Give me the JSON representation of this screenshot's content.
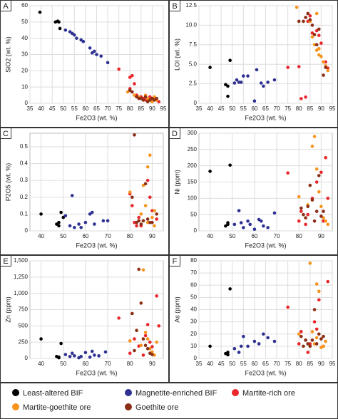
{
  "chart_data": [
    {
      "type": "scatter",
      "label": "A",
      "xlabel": "Fe2O3 (wt. %)",
      "ylabel": "SiO2 (wt. %)",
      "xlim": [
        35,
        95
      ],
      "ylim": [
        0,
        60
      ],
      "xticks": [
        35,
        40,
        45,
        50,
        55,
        60,
        65,
        70,
        75,
        80,
        85,
        90,
        95
      ],
      "yticks": [
        0,
        10,
        20,
        30,
        40,
        50,
        60
      ],
      "grid": true,
      "series": [
        {
          "x": [
            39.5,
            46.5,
            47.5,
            48,
            48.5
          ],
          "values": [
            56,
            50,
            50.5,
            50,
            46
          ]
        },
        {
          "x": [
            51,
            53,
            54,
            55,
            56,
            58,
            59,
            62,
            63,
            64,
            65,
            67,
            70
          ],
          "values": [
            45,
            44,
            43,
            42,
            40,
            39,
            38,
            34,
            31,
            32,
            30,
            29,
            25
          ]
        },
        {
          "x": [
            75,
            80,
            81,
            82,
            80,
            83,
            85,
            86,
            88,
            90,
            92,
            84,
            87,
            89,
            91,
            93
          ],
          "values": [
            21,
            16,
            17,
            12,
            9,
            5,
            4,
            3,
            3,
            2,
            2,
            3,
            2,
            4,
            3,
            1
          ]
        },
        {
          "x": [
            79,
            82,
            84,
            86,
            88,
            89,
            90,
            91,
            92,
            87
          ],
          "values": [
            7,
            5,
            4,
            2,
            3,
            2,
            1,
            4,
            2,
            5
          ]
        },
        {
          "x": [
            80,
            81,
            83,
            84,
            85,
            86,
            87,
            88,
            89,
            90,
            91,
            92
          ],
          "values": [
            8,
            7,
            4,
            3,
            3,
            2,
            4,
            1,
            2,
            3,
            2,
            3
          ]
        }
      ]
    },
    {
      "type": "scatter",
      "label": "B",
      "xlabel": "Fe2O3 (wt. %)",
      "ylabel": "LOI (wt. %)",
      "xlim": [
        35,
        95
      ],
      "ylim": [
        0,
        12.5
      ],
      "xticks": [
        35,
        40,
        45,
        50,
        55,
        60,
        65,
        70,
        75,
        80,
        85,
        90,
        95
      ],
      "yticks": [
        0,
        2.5,
        {
          "value": 5,
          "label": "5.0"
        },
        7.5,
        {
          "value": 10,
          "label": "10.0"
        },
        12.5
      ],
      "grid": true,
      "series": [
        {
          "x": [
            40,
            47,
            48,
            48,
            49
          ],
          "values": [
            4.6,
            2.4,
            2.2,
            0.9,
            5.5
          ]
        },
        {
          "x": [
            51,
            52,
            53,
            54,
            55,
            57,
            60,
            61,
            63,
            64,
            66,
            69
          ],
          "values": [
            2.6,
            3.0,
            2.7,
            2.7,
            3.5,
            3.5,
            0.3,
            4.3,
            2.6,
            2.2,
            2.7,
            3.0
          ]
        },
        {
          "x": [
            75,
            80,
            81,
            83,
            84,
            85,
            86,
            88,
            89,
            90,
            92,
            93
          ],
          "values": [
            4.6,
            4.7,
            0.6,
            0.8,
            10.5,
            11.2,
            9,
            9.3,
            8.7,
            7.7,
            5.3,
            4.5
          ]
        },
        {
          "x": [
            79,
            85,
            86,
            87,
            88,
            89,
            90,
            91,
            92,
            93,
            88,
            89
          ],
          "values": [
            12.3,
            10.5,
            8.5,
            7.5,
            6.8,
            6.2,
            6,
            5.3,
            4.8,
            4.2,
            11.5,
            7
          ]
        },
        {
          "x": [
            80,
            82,
            83,
            84,
            85,
            86,
            87,
            88,
            89,
            91,
            92
          ],
          "values": [
            10.5,
            10.5,
            11,
            11.5,
            10.7,
            10,
            8.8,
            7.5,
            9.5,
            3.6,
            4.6
          ]
        }
      ]
    },
    {
      "type": "scatter",
      "label": "C",
      "xlabel": "Fe2O3 (wt. %)",
      "ylabel": "P2O5 (wt. %)",
      "xlim": [
        35,
        95
      ],
      "ylim": [
        0,
        0.58
      ],
      "xticks": [
        40,
        50,
        60,
        70,
        80,
        90
      ],
      "yticks": [
        0,
        0.1,
        0.2,
        0.3,
        0.4,
        0.5
      ],
      "grid": true,
      "series": [
        {
          "x": [
            40,
            47,
            48,
            48,
            49,
            50
          ],
          "values": [
            0.1,
            0.04,
            0.05,
            0.03,
            0.11,
            0.08
          ]
        },
        {
          "x": [
            51,
            53,
            54,
            55,
            57,
            58,
            60,
            62,
            63,
            64,
            68,
            70
          ],
          "values": [
            0.09,
            0.03,
            0.21,
            0.02,
            0.04,
            0.02,
            0.05,
            0.1,
            0.11,
            0.04,
            0.06,
            0.06
          ]
        },
        {
          "x": [
            80,
            81,
            82,
            83,
            85,
            86,
            88,
            89,
            90,
            92,
            84
          ],
          "values": [
            0.22,
            0.15,
            0.05,
            0.03,
            0.03,
            0.06,
            0.3,
            0.2,
            0.12,
            0.07,
            0.08
          ]
        },
        {
          "x": [
            80,
            85,
            86,
            87,
            88,
            89,
            90,
            91,
            88,
            91
          ],
          "values": [
            0.23,
            0.1,
            0.27,
            0.15,
            0.38,
            0.45,
            0.08,
            0.12,
            0.05,
            0.03
          ]
        },
        {
          "x": [
            82,
            81,
            83,
            84,
            85,
            86,
            87,
            88,
            89,
            90,
            92
          ],
          "values": [
            0.57,
            0.2,
            0.05,
            0.06,
            0.04,
            0.06,
            0.28,
            0.07,
            0.05,
            0.05,
            0.1
          ]
        }
      ]
    },
    {
      "type": "scatter",
      "label": "D",
      "xlabel": "Fe2O3 (wt. %)",
      "ylabel": "Ni (ppm)",
      "xlim": [
        35,
        95
      ],
      "ylim": [
        0,
        300
      ],
      "xticks": [
        40,
        50,
        60,
        70,
        80,
        90
      ],
      "yticks": [
        0,
        50,
        100,
        150,
        200,
        250,
        300
      ],
      "grid": true,
      "series": [
        {
          "x": [
            40,
            47,
            48,
            48,
            49
          ],
          "values": [
            183,
            15,
            20,
            25,
            202
          ]
        },
        {
          "x": [
            51,
            53,
            54,
            55,
            57,
            58,
            60,
            62,
            63,
            64,
            66,
            69
          ],
          "values": [
            20,
            62,
            25,
            10,
            30,
            20,
            5,
            35,
            30,
            15,
            10,
            55
          ]
        },
        {
          "x": [
            75,
            80,
            81,
            83,
            84,
            86,
            88,
            90,
            92,
            93,
            91
          ],
          "values": [
            178,
            30,
            60,
            20,
            50,
            100,
            150,
            180,
            225,
            100,
            30
          ]
        },
        {
          "x": [
            80,
            84,
            86,
            87,
            88,
            89,
            90,
            91,
            92,
            93
          ],
          "values": [
            105,
            80,
            260,
            290,
            190,
            120,
            75,
            40,
            30,
            20
          ]
        },
        {
          "x": [
            81,
            82,
            83,
            84,
            85,
            86,
            87,
            88,
            89,
            90,
            91
          ],
          "values": [
            70,
            50,
            40,
            75,
            140,
            95,
            30,
            60,
            170,
            45,
            60
          ]
        }
      ]
    },
    {
      "type": "scatter",
      "label": "E",
      "xlabel": "Fe2O3 (wt. %)",
      "ylabel": "Zn (ppm)",
      "xlim": [
        35,
        95
      ],
      "ylim": [
        0,
        1500
      ],
      "xticks": [
        40,
        50,
        60,
        70,
        80,
        90
      ],
      "yticks": [
        0,
        250,
        500,
        750,
        {
          "value": 1000,
          "label": "1,000"
        },
        {
          "value": 1250,
          "label": "1,250"
        },
        {
          "value": 1500,
          "label": "1,500"
        }
      ],
      "grid": true,
      "series": [
        {
          "x": [
            40,
            47,
            48,
            48,
            49
          ],
          "values": [
            300,
            30,
            10,
            20,
            230
          ]
        },
        {
          "x": [
            51,
            53,
            54,
            55,
            57,
            58,
            60,
            62,
            63,
            64,
            66,
            69
          ],
          "values": [
            60,
            30,
            80,
            40,
            10,
            30,
            90,
            20,
            110,
            50,
            40,
            100
          ]
        },
        {
          "x": [
            75,
            80,
            82,
            84,
            86,
            87,
            88,
            89,
            90,
            92,
            93
          ],
          "values": [
            620,
            80,
            300,
            190,
            50,
            350,
            520,
            250,
            180,
            960,
            500
          ]
        },
        {
          "x": [
            80,
            85,
            86,
            87,
            88,
            89,
            90,
            91,
            92
          ],
          "values": [
            270,
            200,
            1360,
            400,
            300,
            150,
            100,
            50,
            250
          ]
        },
        {
          "x": [
            81,
            82,
            83,
            84,
            85,
            86,
            87,
            88,
            89,
            90
          ],
          "values": [
            690,
            120,
            430,
            1370,
            850,
            300,
            200,
            150,
            80,
            60
          ]
        }
      ]
    },
    {
      "type": "scatter",
      "label": "F",
      "xlabel": "Fe2O3 (wt. %)",
      "ylabel": "As (ppm)",
      "xlim": [
        35,
        95
      ],
      "ylim": [
        0,
        80
      ],
      "xticks": [
        35,
        40,
        45,
        50,
        55,
        60,
        65,
        70,
        75,
        80,
        85,
        90,
        95
      ],
      "yticks": [
        0,
        10,
        20,
        30,
        40,
        50,
        60,
        70,
        80
      ],
      "grid": true,
      "series": [
        {
          "x": [
            40,
            47,
            48,
            48,
            49
          ],
          "values": [
            10,
            4,
            3,
            5,
            57
          ]
        },
        {
          "x": [
            51,
            53,
            54,
            55,
            57,
            60,
            62,
            64,
            66,
            69
          ],
          "values": [
            8,
            5,
            10,
            18,
            10,
            14,
            12,
            20,
            17,
            14
          ]
        },
        {
          "x": [
            75,
            80,
            81,
            83,
            85,
            87,
            88,
            89,
            91,
            93,
            84
          ],
          "values": [
            42,
            12,
            22,
            15,
            12,
            30,
            24,
            48,
            10,
            63,
            5
          ]
        },
        {
          "x": [
            80,
            85,
            86,
            87,
            88,
            89,
            90,
            91,
            92,
            88
          ],
          "values": [
            20,
            78,
            22,
            12,
            61,
            55,
            9,
            10,
            14,
            17
          ]
        },
        {
          "x": [
            81,
            82,
            83,
            84,
            85,
            86,
            87,
            88,
            89,
            90,
            91
          ],
          "values": [
            18,
            10,
            15,
            12,
            10,
            15,
            40,
            12,
            20,
            16,
            18
          ]
        }
      ]
    }
  ],
  "legend": [
    {
      "name": "Least-altered BIF",
      "color": "#000000"
    },
    {
      "name": "Magnetite-enriched BIF",
      "color": "#2e3192"
    },
    {
      "name": "Martite-rich ore",
      "color": "#e8262b"
    },
    {
      "name": "Martite-goethite ore",
      "color": "#f7941d"
    },
    {
      "name": "Goethite ore",
      "color": "#8b2e16"
    }
  ]
}
